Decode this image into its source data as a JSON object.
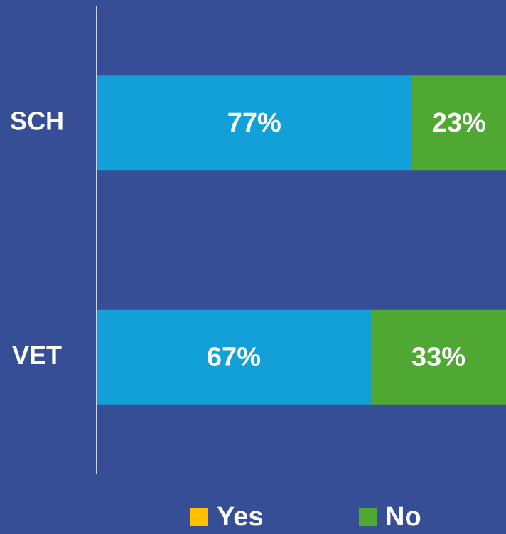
{
  "chart_data": {
    "type": "stacked_barh",
    "categories": [
      "SCH",
      "VET"
    ],
    "series": [
      {
        "name": "Yes",
        "color": "#12a0d8",
        "legend_color": "#ffc000",
        "values": [
          77,
          67
        ],
        "value_labels": [
          "77%",
          "67%"
        ]
      },
      {
        "name": "No",
        "color": "#4fa832",
        "legend_color": "#4fa832",
        "values": [
          23,
          33
        ],
        "value_labels": [
          "23%",
          "33%"
        ]
      }
    ],
    "xlim": [
      0,
      100
    ],
    "legend": "bottom"
  }
}
